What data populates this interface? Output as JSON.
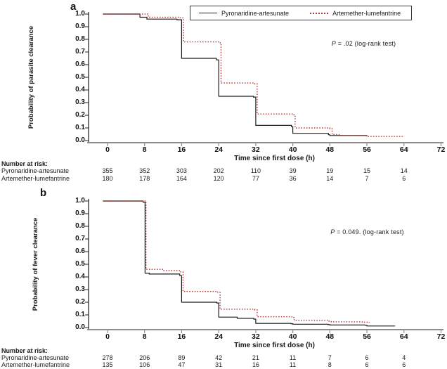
{
  "figure": {
    "background": "#ffffff",
    "black": "#1c1c1c",
    "red": "#b43232",
    "axis_gray": "#8f8f8f"
  },
  "legend": {
    "items": [
      {
        "label": "Pyronaridine-artesunate",
        "style": "solid",
        "color": "#1c1c1c"
      },
      {
        "label": "Artemether-lumefantrine",
        "style": "dotted",
        "color": "#b43232"
      }
    ]
  },
  "chart_data": [
    {
      "type": "line",
      "subtype": "kaplan-meier-step",
      "panel_label": "a",
      "ylabel": "Probability of parasite clearance",
      "xlabel": "Time since first dose (h)",
      "annotation": {
        "prefix": "P",
        "text": " = .02 (log-rank test)"
      },
      "xlim": [
        0,
        72
      ],
      "ylim": [
        0.0,
        1.0
      ],
      "grid": false,
      "legend_position": "top",
      "xticks": [
        0,
        8,
        16,
        24,
        32,
        40,
        48,
        56,
        64,
        72
      ],
      "yticks": [
        "1.0",
        "0.9",
        "0.8",
        "0.7",
        "0.6",
        "0.5",
        "0.4",
        "0.3",
        "0.2",
        "0.1",
        "0.0"
      ],
      "series": [
        {
          "name": "Pyronaridine-artesunate",
          "color": "#1c1c1c",
          "style": "solid",
          "points": [
            [
              -1,
              1.0
            ],
            [
              7,
              0.975
            ],
            [
              8.5,
              0.96
            ],
            [
              15,
              0.955
            ],
            [
              16,
              0.65
            ],
            [
              23.5,
              0.638
            ],
            [
              24,
              0.35
            ],
            [
              31.5,
              0.344
            ],
            [
              32,
              0.12
            ],
            [
              39.7,
              0.11
            ],
            [
              40,
              0.057
            ],
            [
              47.7,
              0.046
            ],
            [
              48,
              0.04
            ],
            [
              56,
              0.035
            ]
          ]
        },
        {
          "name": "Artemether-lumefantrine",
          "color": "#b43232",
          "style": "dotted",
          "points": [
            [
              -1,
              1.0
            ],
            [
              8.8,
              0.975
            ],
            [
              15.7,
              0.97
            ],
            [
              16.4,
              0.78
            ],
            [
              24,
              0.773
            ],
            [
              24.5,
              0.455
            ],
            [
              31.7,
              0.449
            ],
            [
              32.3,
              0.21
            ],
            [
              40,
              0.204
            ],
            [
              40.5,
              0.1
            ],
            [
              48,
              0.094
            ],
            [
              48.5,
              0.048
            ],
            [
              50,
              0.04
            ],
            [
              55.8,
              0.037
            ],
            [
              56.3,
              0.032
            ],
            [
              64,
              0.03
            ]
          ]
        }
      ],
      "number_at_risk": {
        "label": "Number at risk:",
        "times": [
          0,
          8,
          16,
          24,
          32,
          40,
          48,
          56,
          64
        ],
        "rows": [
          {
            "name": "Pyronaridine-artesunate",
            "counts": [
              355,
              352,
              303,
              202,
              110,
              39,
              19,
              15,
              14
            ]
          },
          {
            "name": "Artemether-lumefantrine",
            "counts": [
              180,
              178,
              164,
              120,
              77,
              36,
              14,
              7,
              6
            ]
          }
        ]
      }
    },
    {
      "type": "line",
      "subtype": "kaplan-meier-step",
      "panel_label": "b",
      "ylabel": "Probability of fever clearance",
      "xlabel": "Time since first dose (h)",
      "annotation": {
        "prefix": "P",
        "text": " = 0.049. (log-rank test)"
      },
      "xlim": [
        0,
        72
      ],
      "ylim": [
        0.0,
        1.0
      ],
      "grid": false,
      "legend_position": "none",
      "xticks": [
        0,
        8,
        16,
        24,
        32,
        40,
        48,
        56,
        64,
        72
      ],
      "yticks": [
        "1.0",
        "0.9",
        "0.8",
        "0.7",
        "0.6",
        "0.5",
        "0.4",
        "0.3",
        "0.2",
        "0.1",
        "0.0"
      ],
      "series": [
        {
          "name": "Pyronaridine-artesunate",
          "color": "#1c1c1c",
          "style": "solid",
          "points": [
            [
              -1,
              1.0
            ],
            [
              7.7,
              0.99
            ],
            [
              8.1,
              0.43
            ],
            [
              9,
              0.423
            ],
            [
              15.6,
              0.41
            ],
            [
              16,
              0.2
            ],
            [
              23.6,
              0.194
            ],
            [
              24,
              0.082
            ],
            [
              28,
              0.073
            ],
            [
              31.6,
              0.066
            ],
            [
              32,
              0.033
            ],
            [
              39.6,
              0.03
            ],
            [
              40,
              0.026
            ],
            [
              47.6,
              0.023
            ],
            [
              48,
              0.02
            ],
            [
              55.6,
              0.018
            ],
            [
              56,
              0.012
            ],
            [
              62,
              0.01
            ]
          ]
        },
        {
          "name": "Artemether-lumefantrine",
          "color": "#b43232",
          "style": "dotted",
          "points": [
            [
              -1,
              1.0
            ],
            [
              8.3,
              0.46
            ],
            [
              12,
              0.45
            ],
            [
              15.8,
              0.44
            ],
            [
              16.3,
              0.285
            ],
            [
              23.8,
              0.279
            ],
            [
              24.3,
              0.145
            ],
            [
              31.8,
              0.139
            ],
            [
              32.3,
              0.085
            ],
            [
              39.8,
              0.079
            ],
            [
              40.3,
              0.057
            ],
            [
              47.8,
              0.051
            ],
            [
              48.3,
              0.045
            ],
            [
              55,
              0.042
            ],
            [
              56.5,
              0.038
            ]
          ]
        }
      ],
      "number_at_risk": {
        "label": "Number at risk:",
        "times": [
          0,
          8,
          16,
          24,
          32,
          40,
          48,
          56,
          64
        ],
        "rows": [
          {
            "name": "Pyronaridine-artesunate",
            "counts": [
              278,
              206,
              89,
              42,
              21,
              11,
              7,
              6,
              4
            ]
          },
          {
            "name": "Artemether-lumefantrine",
            "counts": [
              135,
              106,
              47,
              31,
              16,
              11,
              8,
              6,
              6
            ]
          }
        ]
      }
    }
  ]
}
